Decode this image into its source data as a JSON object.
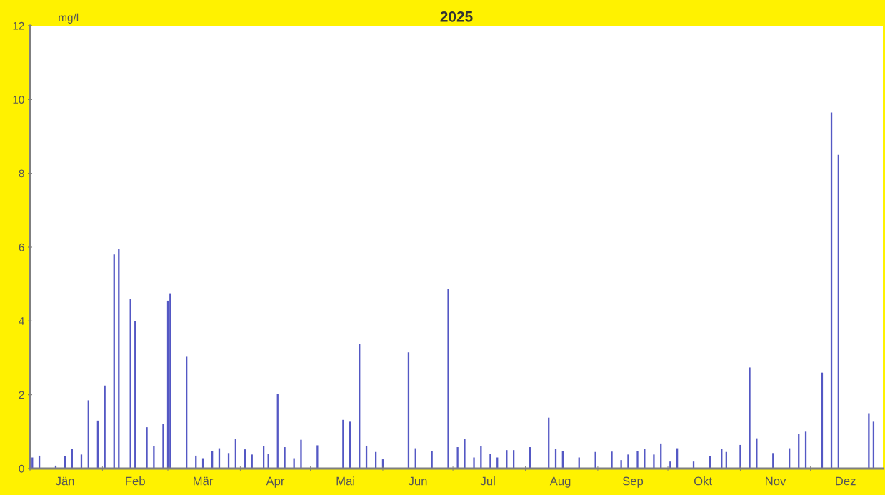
{
  "chart_data": {
    "type": "bar",
    "title": "2025",
    "ylabel": "mg/l",
    "x": [
      "2025-01-02",
      "2025-01-05",
      "2025-01-12",
      "2025-01-16",
      "2025-01-19",
      "2025-01-23",
      "2025-01-26",
      "2025-01-30",
      "2025-02-02",
      "2025-02-06",
      "2025-02-08",
      "2025-02-13",
      "2025-02-15",
      "2025-02-20",
      "2025-02-23",
      "2025-02-27",
      "2025-03-01",
      "2025-03-02",
      "2025-03-09",
      "2025-03-13",
      "2025-03-16",
      "2025-03-20",
      "2025-03-23",
      "2025-03-27",
      "2025-03-30",
      "2025-04-03",
      "2025-04-06",
      "2025-04-11",
      "2025-04-13",
      "2025-04-17",
      "2025-04-20",
      "2025-04-24",
      "2025-04-27",
      "2025-05-04",
      "2025-05-15",
      "2025-05-18",
      "2025-05-22",
      "2025-05-25",
      "2025-05-29",
      "2025-06-01",
      "2025-06-12",
      "2025-06-15",
      "2025-06-22",
      "2025-06-29",
      "2025-07-03",
      "2025-07-06",
      "2025-07-10",
      "2025-07-13",
      "2025-07-17",
      "2025-07-20",
      "2025-07-24",
      "2025-07-27",
      "2025-08-03",
      "2025-08-11",
      "2025-08-14",
      "2025-08-17",
      "2025-08-24",
      "2025-08-31",
      "2025-09-07",
      "2025-09-11",
      "2025-09-14",
      "2025-09-18",
      "2025-09-21",
      "2025-09-25",
      "2025-09-28",
      "2025-10-02",
      "2025-10-05",
      "2025-10-12",
      "2025-10-19",
      "2025-10-24",
      "2025-10-26",
      "2025-11-01",
      "2025-11-05",
      "2025-11-08",
      "2025-11-15",
      "2025-11-22",
      "2025-11-26",
      "2025-11-29",
      "2025-12-06",
      "2025-12-10",
      "2025-12-13",
      "2025-12-26",
      "2025-12-28"
    ],
    "values": [
      0.3,
      0.35,
      0.08,
      0.33,
      0.53,
      0.38,
      1.85,
      1.3,
      2.25,
      5.8,
      5.95,
      4.6,
      4.0,
      1.12,
      0.62,
      1.2,
      4.55,
      4.75,
      3.03,
      0.35,
      0.28,
      0.47,
      0.55,
      0.42,
      0.8,
      0.52,
      0.38,
      0.6,
      0.4,
      2.02,
      0.58,
      0.28,
      0.78,
      0.63,
      1.32,
      1.27,
      3.38,
      0.62,
      0.45,
      0.25,
      3.15,
      0.55,
      0.47,
      4.87,
      0.58,
      0.8,
      0.3,
      0.6,
      0.4,
      0.3,
      0.5,
      0.5,
      0.58,
      1.38,
      0.53,
      0.48,
      0.3,
      0.45,
      0.46,
      0.23,
      0.38,
      0.48,
      0.53,
      0.38,
      0.68,
      0.19,
      0.55,
      0.19,
      0.34,
      0.53,
      0.45,
      0.64,
      2.74,
      0.82,
      0.42,
      0.55,
      0.93,
      1.0,
      2.6,
      9.65,
      8.5,
      1.5,
      1.27
    ],
    "color": "#5458c4",
    "xlim": [
      "2025-01-01",
      "2026-01-01"
    ],
    "xticks": [
      {
        "value": "2025-01-01",
        "label": null
      },
      {
        "value": "2025-01-16",
        "label": "Jän"
      },
      {
        "value": "2025-02-01",
        "label": null
      },
      {
        "value": "2025-02-15",
        "label": "Feb"
      },
      {
        "value": "2025-03-01",
        "label": null
      },
      {
        "value": "2025-03-16",
        "label": "Mär"
      },
      {
        "value": "2025-04-01",
        "label": null
      },
      {
        "value": "2025-04-16",
        "label": "Apr"
      },
      {
        "value": "2025-05-01",
        "label": null
      },
      {
        "value": "2025-05-16",
        "label": "Mai"
      },
      {
        "value": "2025-06-01",
        "label": null
      },
      {
        "value": "2025-06-16",
        "label": "Jun"
      },
      {
        "value": "2025-07-01",
        "label": null
      },
      {
        "value": "2025-07-16",
        "label": "Jul"
      },
      {
        "value": "2025-08-01",
        "label": null
      },
      {
        "value": "2025-08-16",
        "label": "Aug"
      },
      {
        "value": "2025-09-01",
        "label": null
      },
      {
        "value": "2025-09-16",
        "label": "Sep"
      },
      {
        "value": "2025-10-01",
        "label": null
      },
      {
        "value": "2025-10-16",
        "label": "Okt"
      },
      {
        "value": "2025-11-01",
        "label": null
      },
      {
        "value": "2025-11-16",
        "label": "Nov"
      },
      {
        "value": "2025-12-01",
        "label": null
      },
      {
        "value": "2025-12-16",
        "label": "Dez"
      }
    ],
    "ylim": [
      0,
      12
    ],
    "yticks": [
      0,
      2,
      4,
      6,
      8,
      10,
      12
    ],
    "grid": false
  }
}
